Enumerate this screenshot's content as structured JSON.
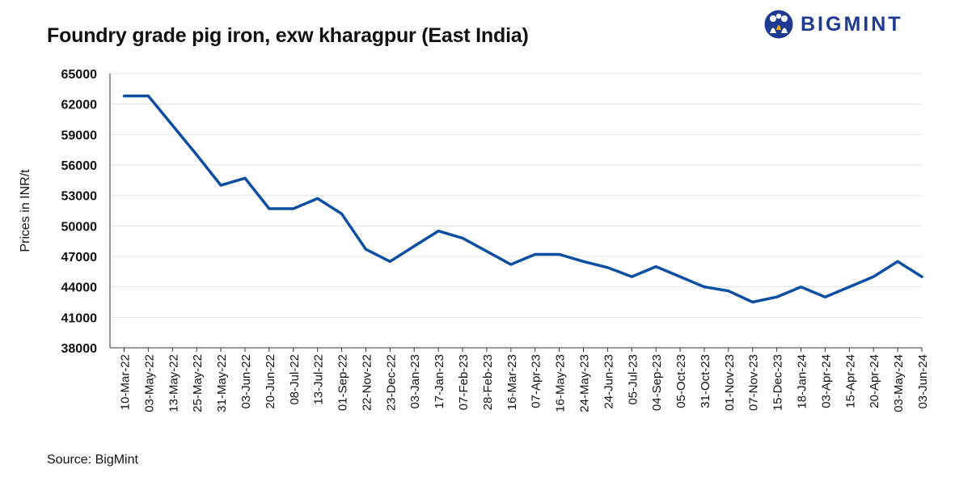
{
  "header": {
    "title": "Foundry grade pig iron, exw kharagpur (East India)",
    "logo_text": "BIGMINT"
  },
  "footer": {
    "source": "Source: BigMint"
  },
  "colors": {
    "line": "#0b4ea2",
    "grid": "#e3e3e3",
    "logo": "#1f3a93"
  },
  "chart_data": {
    "type": "line",
    "title": "Foundry grade pig iron, exw kharagpur (East India)",
    "xlabel": "",
    "ylabel": "Prices in INR/t",
    "ylim": [
      38000,
      65000
    ],
    "yticks": [
      38000,
      41000,
      44000,
      47000,
      50000,
      53000,
      56000,
      59000,
      62000,
      65000
    ],
    "grid": true,
    "legend": "none",
    "x": [
      "10-Mar-22",
      "03-May-22",
      "13-May-22",
      "25-May-22",
      "31-May-22",
      "03-Jun-22",
      "20-Jun-22",
      "08-Jul-22",
      "13-Jul-22",
      "01-Sep-22",
      "22-Nov-22",
      "23-Dec-22",
      "03-Jan-23",
      "17-Jan-23",
      "07-Feb-23",
      "28-Feb-23",
      "16-Mar-23",
      "07-Apr-23",
      "16-May-23",
      "24-May-23",
      "24-Jun-23",
      "05-Jul-23",
      "04-Sep-23",
      "05-Oct-23",
      "31-Oct-23",
      "01-Nov-23",
      "07-Nov-23",
      "15-Dec-23",
      "18-Jan-24",
      "03-Apr-24",
      "15-Apr-24",
      "20-Apr-24",
      "03-May-24",
      "03-Jun-24"
    ],
    "series": [
      {
        "values": [
          62800,
          62800,
          59900,
          57000,
          54000,
          54700,
          51700,
          51700,
          52700,
          51200,
          47700,
          46500,
          48000,
          49500,
          48800,
          47500,
          46200,
          47200,
          47200,
          46500,
          45900,
          45000,
          46000,
          45000,
          44000,
          43600,
          42500,
          43000,
          44000,
          43000,
          44000,
          45000,
          46500,
          45000
        ]
      }
    ]
  }
}
